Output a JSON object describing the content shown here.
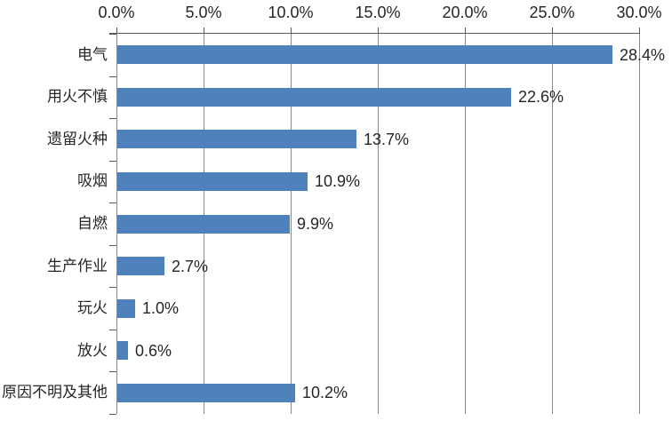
{
  "chart_data": {
    "type": "bar",
    "orientation": "horizontal",
    "title": "",
    "categories": [
      "电气",
      "用火不慎",
      "遗留火种",
      "吸烟",
      "自燃",
      "生产作业",
      "玩火",
      "放火",
      "原因不明及其他"
    ],
    "values": [
      28.4,
      22.6,
      13.7,
      10.9,
      9.9,
      2.7,
      1.0,
      0.6,
      10.2
    ],
    "value_labels": [
      "28.4%",
      "22.6%",
      "13.7%",
      "10.9%",
      "9.9%",
      "2.7%",
      "1.0%",
      "0.6%",
      "10.2%"
    ],
    "x_axis": {
      "position": "top",
      "min": 0,
      "max": 30,
      "tick_values": [
        0,
        5,
        10,
        15,
        20,
        25,
        30
      ],
      "tick_labels": [
        "0.0%",
        "5.0%",
        "10.0%",
        "15.0%",
        "20.0%",
        "25.0%",
        "30.0%"
      ]
    },
    "grid": true,
    "legend": false,
    "colors": {
      "bar": "#4F81BD",
      "gridline": "#898989",
      "axis_line": "#595959",
      "text": "#262626",
      "background": "#FFFFFF"
    }
  }
}
